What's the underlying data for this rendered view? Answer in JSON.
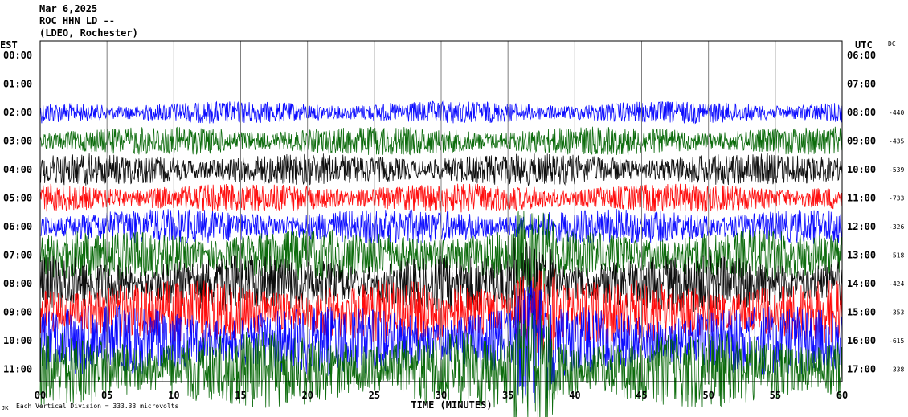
{
  "header": {
    "date": "Mar 6,2025",
    "station": "ROC HHN LD --",
    "network": "(LDEO, Rochester)"
  },
  "left_axis_title": "EST",
  "right_axis_title": "UTC",
  "offset_header": "DC",
  "footer": {
    "xlabel": "TIME (MINUTES)",
    "scale_note": "Each Vertical Division =  333.33 microvolts",
    "mark": "JK"
  },
  "colors": {
    "blue": "#0000ff",
    "green": "#006400",
    "black": "#000000",
    "red": "#ff0000",
    "grid": "#808080"
  },
  "chart_data": {
    "type": "line",
    "title": "ROC HHN LD --",
    "xlabel": "TIME (MINUTES)",
    "xlim": [
      0,
      60
    ],
    "x_ticks": [
      "00",
      "05",
      "10",
      "15",
      "20",
      "25",
      "30",
      "35",
      "40",
      "45",
      "50",
      "55",
      "60"
    ],
    "grid": "vertical lines every 5 minutes",
    "rows": [
      {
        "est": "00:00",
        "utc": "06:00",
        "dc": "",
        "color": "blue",
        "amplitude": 0
      },
      {
        "est": "01:00",
        "utc": "07:00",
        "dc": "",
        "color": "green",
        "amplitude": 0
      },
      {
        "est": "02:00",
        "utc": "08:00",
        "dc": "-440",
        "color": "blue",
        "amplitude": 14
      },
      {
        "est": "03:00",
        "utc": "09:00",
        "dc": "-435",
        "color": "green",
        "amplitude": 18
      },
      {
        "est": "04:00",
        "utc": "10:00",
        "dc": "-539",
        "color": "black",
        "amplitude": 20
      },
      {
        "est": "05:00",
        "utc": "11:00",
        "dc": "-733",
        "color": "red",
        "amplitude": 18
      },
      {
        "est": "06:00",
        "utc": "12:00",
        "dc": "-326",
        "color": "blue",
        "amplitude": 22
      },
      {
        "est": "07:00",
        "utc": "13:00",
        "dc": "-518",
        "color": "green",
        "amplitude": 32
      },
      {
        "est": "08:00",
        "utc": "14:00",
        "dc": "-424",
        "color": "black",
        "amplitude": 36
      },
      {
        "est": "09:00",
        "utc": "15:00",
        "dc": "-353",
        "color": "red",
        "amplitude": 40
      },
      {
        "est": "10:00",
        "utc": "16:00",
        "dc": "-615",
        "color": "blue",
        "amplitude": 44
      },
      {
        "est": "11:00",
        "utc": "17:00",
        "dc": "-338",
        "color": "green",
        "amplitude": 48
      }
    ]
  }
}
